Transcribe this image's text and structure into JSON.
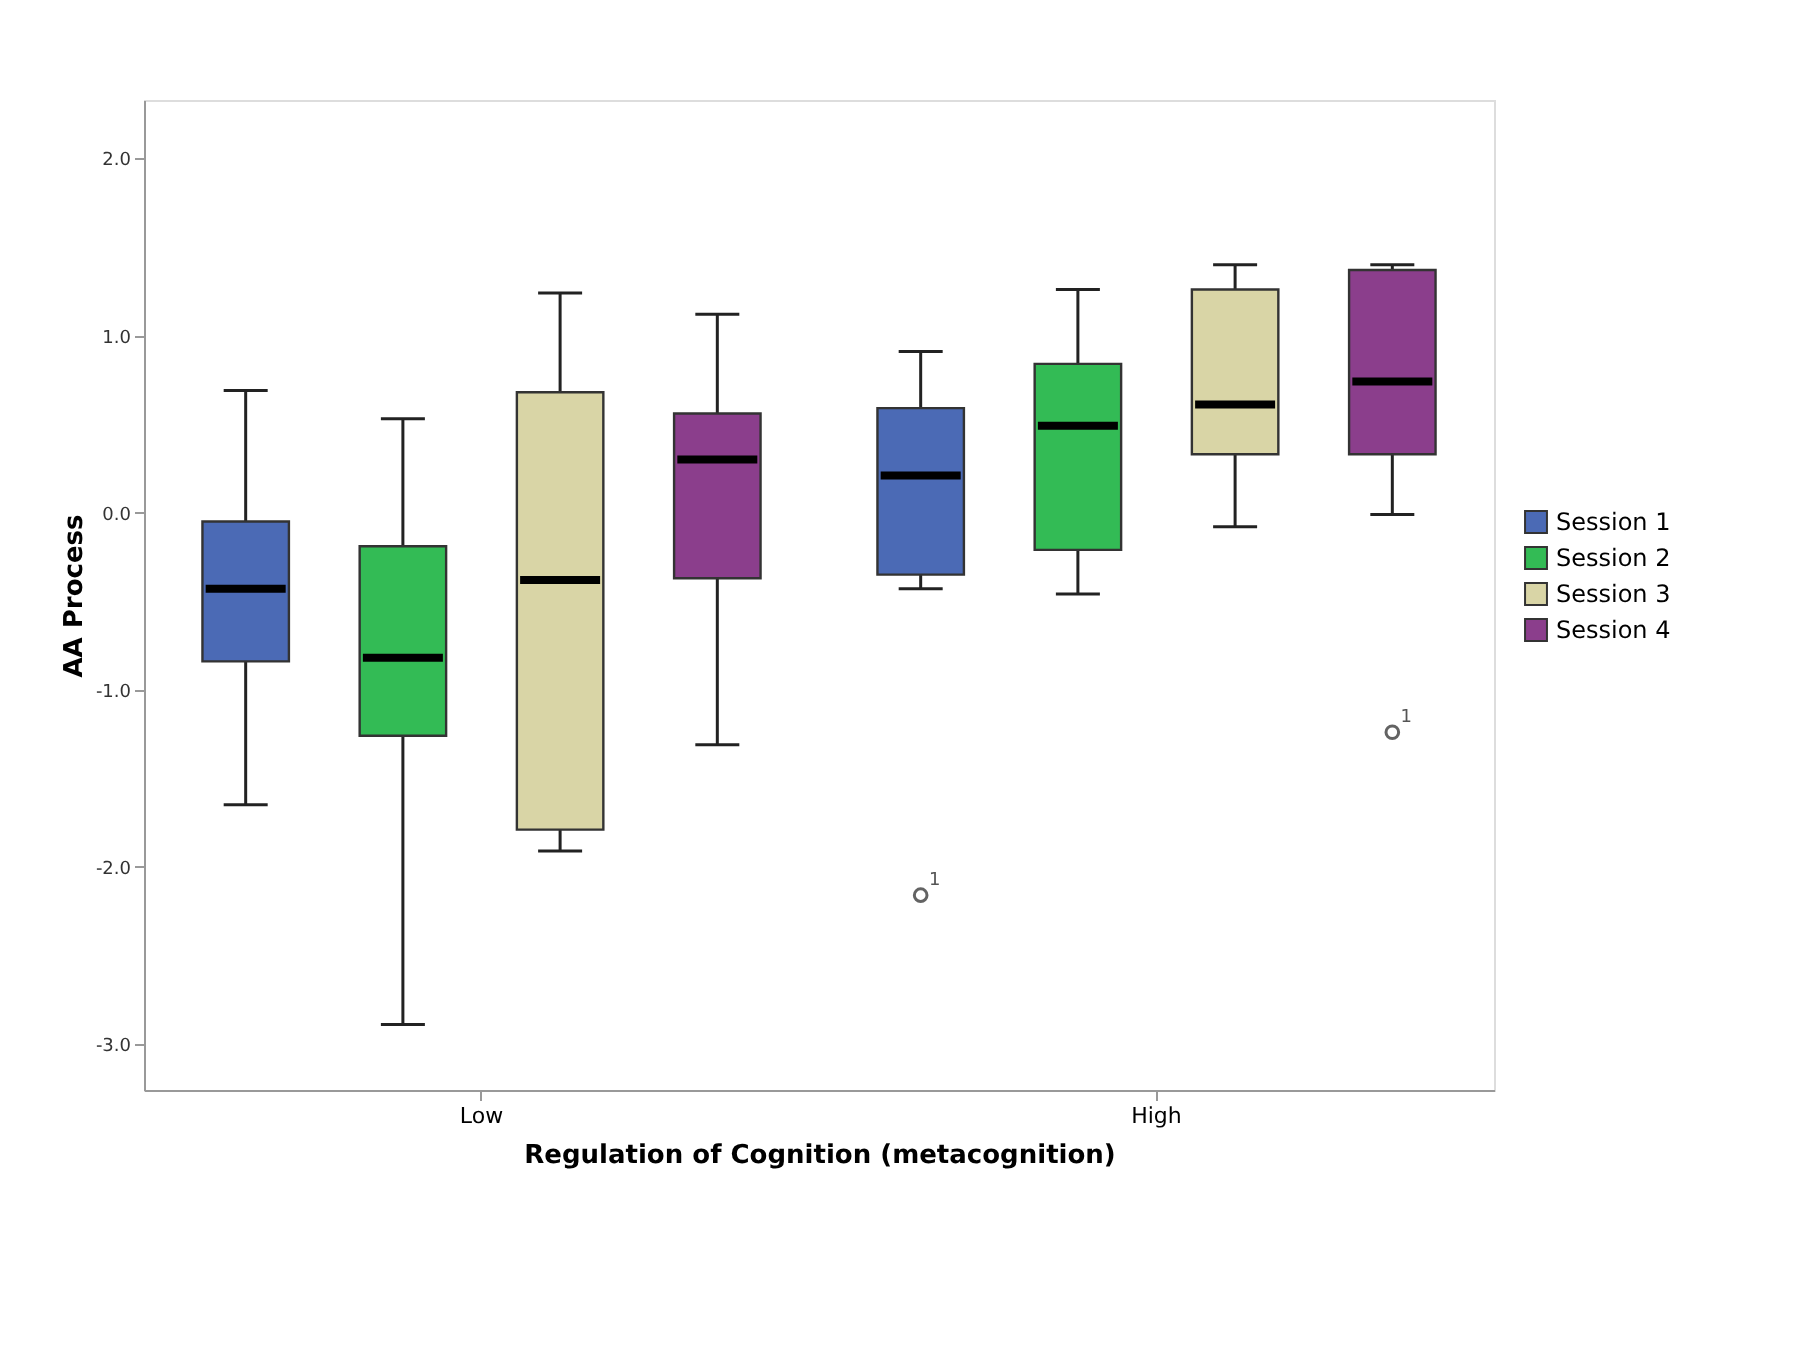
{
  "chart_data": {
    "type": "box",
    "xlabel": "Regulation of Cognition (metacognition)",
    "ylabel": "AA Process",
    "categories": [
      "Low",
      "High"
    ],
    "series": [
      {
        "name": "Session 1",
        "color": "#4b6ab5",
        "boxes": [
          {
            "low": -1.65,
            "q1": -0.84,
            "median": -0.43,
            "q3": -0.05,
            "high": 0.69
          },
          {
            "low": -0.43,
            "q1": -0.35,
            "median": 0.21,
            "q3": 0.59,
            "high": 0.91,
            "outliers": [
              -2.16
            ]
          }
        ]
      },
      {
        "name": "Session 2",
        "color": "#33bb55",
        "boxes": [
          {
            "low": -2.89,
            "q1": -1.26,
            "median": -0.82,
            "q3": -0.19,
            "high": 0.53
          },
          {
            "low": -0.46,
            "q1": -0.21,
            "median": 0.49,
            "q3": 0.84,
            "high": 1.26
          }
        ]
      },
      {
        "name": "Session 3",
        "color": "#d9d5a6",
        "boxes": [
          {
            "low": -1.91,
            "q1": -1.79,
            "median": -0.38,
            "q3": 0.68,
            "high": 1.24
          },
          {
            "low": -0.08,
            "q1": 0.33,
            "median": 0.61,
            "q3": 1.26,
            "high": 1.4
          }
        ]
      },
      {
        "name": "Session 4",
        "color": "#8b3e8c",
        "boxes": [
          {
            "low": -1.31,
            "q1": -0.37,
            "median": 0.3,
            "q3": 0.56,
            "high": 1.12
          },
          {
            "low": -0.01,
            "q1": 0.33,
            "median": 0.74,
            "q3": 1.37,
            "high": 1.4,
            "outliers": [
              -1.24
            ]
          }
        ]
      }
    ],
    "ylim": [
      -3.26,
      2.33
    ],
    "yticks": [
      {
        "value": -3,
        "label": "-3.0"
      },
      {
        "value": -2,
        "label": "-2.0"
      },
      {
        "value": -1,
        "label": "-1.0"
      },
      {
        "value": 0,
        "label": "0.0"
      },
      {
        "value": 1,
        "label": "1.0"
      },
      {
        "value": 2,
        "label": "2.0"
      }
    ],
    "annotations": [
      "1",
      "1"
    ],
    "grid": false,
    "legend": "right"
  }
}
